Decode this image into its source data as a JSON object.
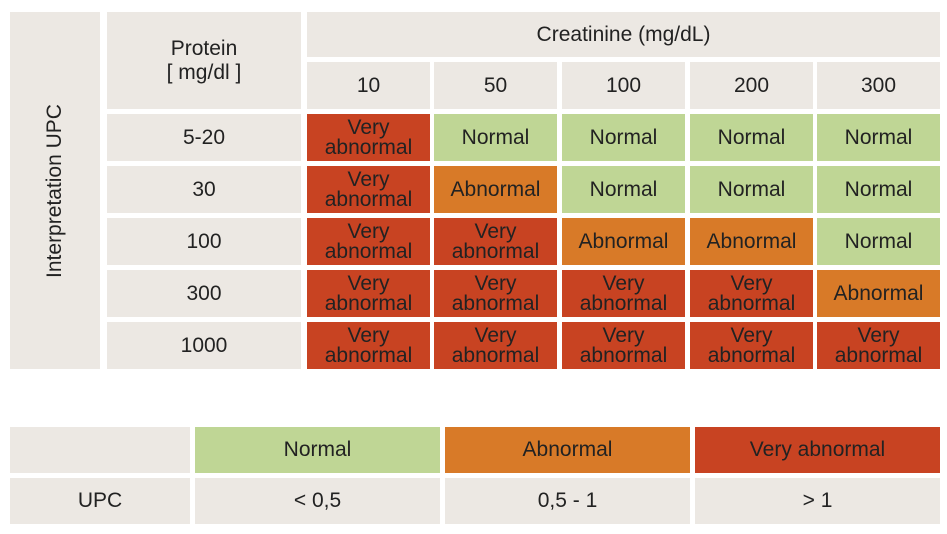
{
  "table": {
    "side_label": "Interpretation UPC",
    "protein_header": [
      "Protein",
      "[ mg/dl ]"
    ],
    "creatinine_header": "Creatinine (mg/dL)",
    "creatinine_values": [
      "10",
      "50",
      "100",
      "200",
      "300"
    ],
    "protein_values": [
      "5-20",
      "30",
      "100",
      "300",
      "1000"
    ],
    "results": [
      [
        "Very abnormal",
        "Normal",
        "Normal",
        "Normal",
        "Normal"
      ],
      [
        "Very abnormal",
        "Abnormal",
        "Normal",
        "Normal",
        "Normal"
      ],
      [
        "Very abnormal",
        "Very abnormal",
        "Abnormal",
        "Abnormal",
        "Normal"
      ],
      [
        "Very abnormal",
        "Very abnormal",
        "Very abnormal",
        "Very abnormal",
        "Abnormal"
      ],
      [
        "Very abnormal",
        "Very abnormal",
        "Very abnormal",
        "Very abnormal",
        "Very abnormal"
      ]
    ]
  },
  "legend": {
    "categories": [
      "Normal",
      "Abnormal",
      "Very abnormal"
    ],
    "row_label": "UPC",
    "ranges": [
      "< 0,5",
      "0,5 - 1",
      "> 1"
    ]
  },
  "colors": {
    "Normal": "#bfd695",
    "Abnormal": "#d87a28",
    "Very abnormal": "#c84322",
    "neutral": "#ece8e3"
  }
}
